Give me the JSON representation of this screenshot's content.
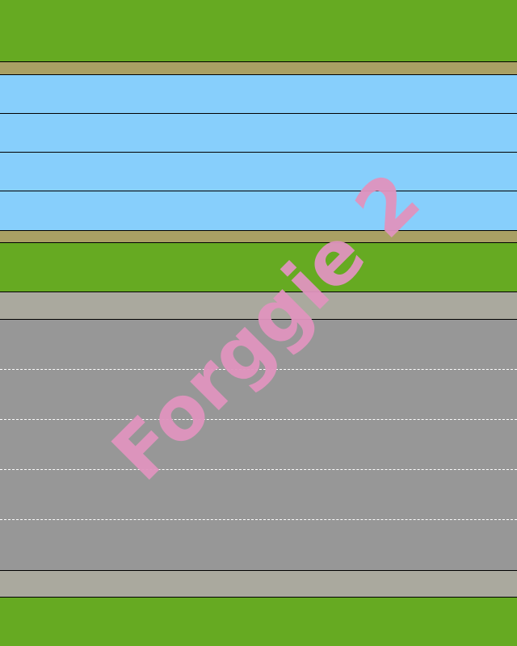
{
  "watermark": {
    "text": "Forggie 2",
    "color": "#e094be"
  },
  "palette": {
    "grass": "#66aa22",
    "bank": "#a9a064",
    "water": "#87cffc",
    "sidewalk": "#aaa99e",
    "road": "#979797",
    "lane_marking": "#ffffff"
  },
  "lanes": {
    "water_count": 4,
    "road_count": 5
  }
}
